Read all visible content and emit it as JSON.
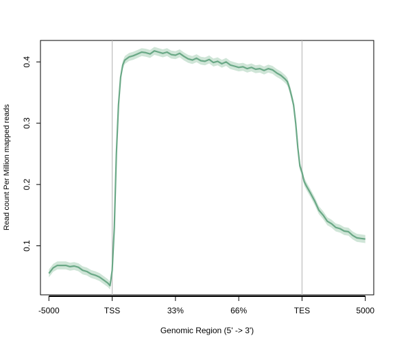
{
  "chart_data": {
    "type": "line",
    "xlabel": "Genomic Region (5' -> 3')",
    "ylabel": "Read count Per Million mapped reads",
    "x_ticks": [
      "-5000",
      "TSS",
      "33%",
      "66%",
      "TES",
      "5000"
    ],
    "x_tick_positions": [
      0,
      30,
      60,
      90,
      120,
      150
    ],
    "y_ticks": [
      "0.1",
      "0.2",
      "0.3",
      "0.4"
    ],
    "ylim": [
      0.02,
      0.435
    ],
    "xlim": [
      -4,
      154
    ],
    "vlines": [
      30,
      120
    ],
    "colors": {
      "line": "#6aa886",
      "band": "#cfe5d7",
      "vline": "#bdbdbd"
    },
    "series": [
      {
        "x": [
          0,
          2,
          4,
          6,
          8,
          10,
          12,
          14,
          16,
          18,
          20,
          22,
          24,
          26,
          28,
          29,
          30,
          31,
          32,
          33,
          34,
          35,
          36,
          38,
          40,
          42,
          44,
          46,
          48,
          50,
          52,
          54,
          56,
          58,
          60,
          62,
          64,
          66,
          68,
          70,
          72,
          74,
          76,
          78,
          80,
          82,
          84,
          86,
          88,
          90,
          92,
          94,
          96,
          98,
          100,
          102,
          104,
          106,
          108,
          110,
          112,
          113,
          114,
          115,
          116,
          117,
          118,
          119,
          120,
          121,
          122,
          124,
          126,
          128,
          130,
          132,
          134,
          136,
          138,
          140,
          142,
          144,
          146,
          148,
          150
        ],
        "values": [
          0.055,
          0.064,
          0.068,
          0.068,
          0.068,
          0.066,
          0.067,
          0.065,
          0.06,
          0.058,
          0.054,
          0.052,
          0.049,
          0.044,
          0.039,
          0.035,
          0.06,
          0.13,
          0.25,
          0.33,
          0.375,
          0.395,
          0.403,
          0.408,
          0.41,
          0.413,
          0.416,
          0.415,
          0.413,
          0.418,
          0.416,
          0.414,
          0.416,
          0.412,
          0.411,
          0.414,
          0.409,
          0.405,
          0.403,
          0.406,
          0.402,
          0.401,
          0.404,
          0.399,
          0.401,
          0.397,
          0.4,
          0.395,
          0.393,
          0.391,
          0.392,
          0.389,
          0.391,
          0.388,
          0.389,
          0.386,
          0.389,
          0.387,
          0.382,
          0.378,
          0.372,
          0.368,
          0.358,
          0.345,
          0.33,
          0.3,
          0.26,
          0.23,
          0.22,
          0.205,
          0.198,
          0.186,
          0.173,
          0.158,
          0.15,
          0.14,
          0.136,
          0.13,
          0.128,
          0.124,
          0.123,
          0.117,
          0.113,
          0.112,
          0.111
        ],
        "band": 0.0065
      }
    ]
  }
}
